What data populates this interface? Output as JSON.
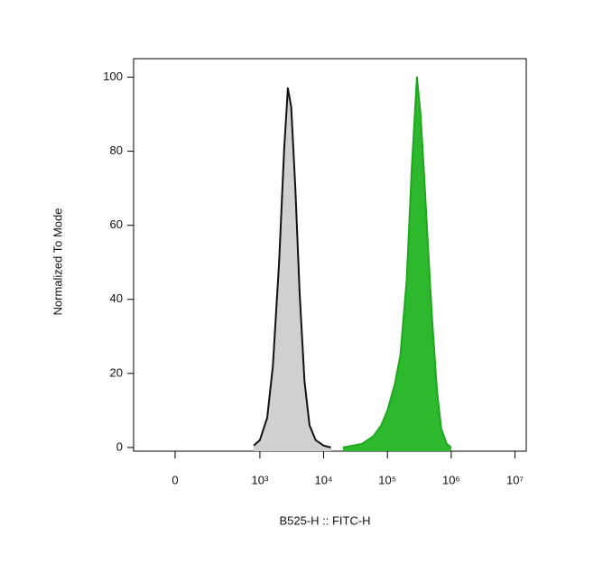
{
  "chart_data": {
    "type": "area",
    "xlabel": "B525-H :: FITC-H",
    "ylabel": "Normalized To Mode",
    "xscale": "biexponential",
    "xlim": [
      -200,
      15000000
    ],
    "xticks": [
      0,
      {
        "value": 1000,
        "label": "10³"
      },
      {
        "value": 10000,
        "label": "10⁴"
      },
      {
        "value": 100000,
        "label": "10⁵"
      },
      {
        "value": 1000000,
        "label": "10⁶"
      },
      {
        "value": 10000000,
        "label": "10⁷"
      }
    ],
    "ylim": [
      -1,
      105
    ],
    "yticks": [
      0,
      20,
      40,
      60,
      80,
      100
    ],
    "series": [
      {
        "color": "#d0d0d0",
        "line_color": "#111111",
        "x": [
          800,
          1000,
          1300,
          1600,
          2000,
          2400,
          2750,
          3100,
          3600,
          4200,
          5000,
          6000,
          7500,
          10000,
          13000
        ],
        "values": [
          0.5,
          2,
          8,
          22,
          50,
          80,
          97,
          92,
          70,
          42,
          18,
          6,
          2,
          0.5,
          0
        ]
      },
      {
        "color": "#2db82d",
        "line_color": "#1fa81f",
        "x": [
          20000,
          40000,
          60000,
          80000,
          100000,
          130000,
          160000,
          200000,
          240000,
          290000,
          330000,
          380000,
          430000,
          500000,
          600000,
          700000,
          850000,
          1000000
        ],
        "values": [
          0,
          1,
          3,
          6,
          10,
          17,
          25,
          45,
          75,
          100,
          90,
          72,
          55,
          35,
          15,
          5,
          1,
          0
        ]
      }
    ]
  }
}
